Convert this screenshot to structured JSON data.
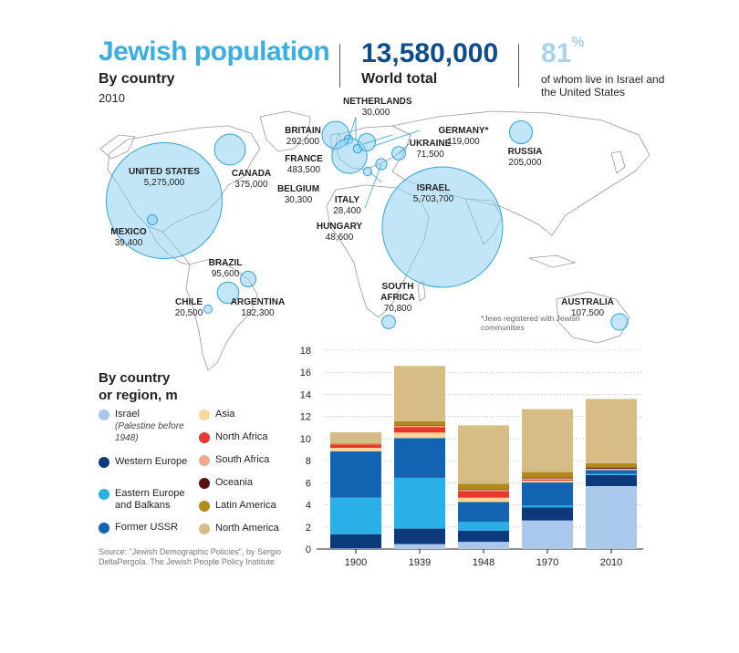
{
  "header": {
    "title": "Jewish population",
    "subtitle": "By country",
    "year": "2010",
    "world_total_value": "13,580,000",
    "world_total_label": "World total",
    "share_value": "81",
    "share_unit": "%",
    "share_label": "of whom live in Israel and the United States"
  },
  "map": {
    "note": "*Jews registered with Jewish communities",
    "countries": [
      {
        "name": "UNITED STATES",
        "value": "5,275,000",
        "population": 5275000
      },
      {
        "name": "ISRAEL",
        "value": "5,703,700",
        "population": 5703700
      },
      {
        "name": "CANADA",
        "value": "375,000",
        "population": 375000
      },
      {
        "name": "MEXICO",
        "value": "39,400",
        "population": 39400
      },
      {
        "name": "BRAZIL",
        "value": "95,600",
        "population": 95600
      },
      {
        "name": "CHILE",
        "value": "20,500",
        "population": 20500
      },
      {
        "name": "ARGENTINA",
        "value": "182,300",
        "population": 182300
      },
      {
        "name": "BRITAIN",
        "value": "292,000",
        "population": 292000
      },
      {
        "name": "NETHERLANDS",
        "value": "30,000",
        "population": 30000
      },
      {
        "name": "FRANCE",
        "value": "483,500",
        "population": 483500
      },
      {
        "name": "BELGIUM",
        "value": "30,300",
        "population": 30300
      },
      {
        "name": "GERMANY*",
        "value": "119,000",
        "population": 119000
      },
      {
        "name": "UKRAINE",
        "value": "71,500",
        "population": 71500
      },
      {
        "name": "RUSSIA",
        "value": "205,000",
        "population": 205000
      },
      {
        "name": "ITALY",
        "value": "28,400",
        "population": 28400
      },
      {
        "name": "HUNGARY",
        "value": "48,600",
        "population": 48600
      },
      {
        "name": "SOUTH AFRICA",
        "value": "70,800",
        "population": 70800
      },
      {
        "name": "AUSTRALIA",
        "value": "107,500",
        "population": 107500
      }
    ]
  },
  "chart_section": {
    "title_line1": "By country",
    "title_line2": "or region, m",
    "legend": [
      {
        "label": "Israel",
        "sub": "(Palestine before 1948)",
        "color": "#a9c8ea"
      },
      {
        "label": "Western Europe",
        "color": "#0d3a7a"
      },
      {
        "label": "Eastern Europe and Balkans",
        "color": "#2ab0e6"
      },
      {
        "label": "Former USSR",
        "color": "#1464b4"
      },
      {
        "label": "Asia",
        "color": "#f9d69a"
      },
      {
        "label": "North Africa",
        "color": "#e8382d"
      },
      {
        "label": "South Africa",
        "color": "#f3a98b"
      },
      {
        "label": "Oceania",
        "color": "#5a0f0f"
      },
      {
        "label": "Latin America",
        "color": "#b08a1a"
      },
      {
        "label": "North America",
        "color": "#d6bd86"
      }
    ],
    "source": "Source: \"Jewish Demographic Policies\", by Sergio DellaPergola. The Jewish People Policy Institute"
  },
  "chart_data": {
    "type": "bar",
    "stacked": true,
    "categories": [
      "1900",
      "1939",
      "1948",
      "1970",
      "2010"
    ],
    "ylim": [
      0,
      18
    ],
    "yticks": [
      0,
      2,
      4,
      6,
      8,
      10,
      12,
      14,
      16,
      18
    ],
    "grid": true,
    "series": [
      {
        "name": "Israel",
        "values": [
          0.05,
          0.45,
          0.65,
          2.58,
          5.7
        ]
      },
      {
        "name": "Western Europe",
        "values": [
          1.3,
          1.4,
          1.0,
          1.2,
          1.0
        ]
      },
      {
        "name": "Eastern Europe and Balkans",
        "values": [
          3.3,
          4.6,
          0.8,
          0.15,
          0.1
        ]
      },
      {
        "name": "Former USSR",
        "values": [
          4.2,
          3.6,
          1.8,
          2.1,
          0.35
        ]
      },
      {
        "name": "Asia",
        "values": [
          0.3,
          0.5,
          0.4,
          0.15,
          0.05
        ]
      },
      {
        "name": "North Africa",
        "values": [
          0.3,
          0.5,
          0.6,
          0.1,
          0.0
        ]
      },
      {
        "name": "South Africa",
        "values": [
          0.05,
          0.1,
          0.1,
          0.12,
          0.07
        ]
      },
      {
        "name": "Oceania",
        "values": [
          0.02,
          0.03,
          0.05,
          0.07,
          0.11
        ]
      },
      {
        "name": "Latin America",
        "values": [
          0.05,
          0.4,
          0.5,
          0.5,
          0.4
        ]
      },
      {
        "name": "North America",
        "values": [
          1.0,
          5.0,
          5.3,
          5.7,
          5.8
        ]
      }
    ]
  }
}
